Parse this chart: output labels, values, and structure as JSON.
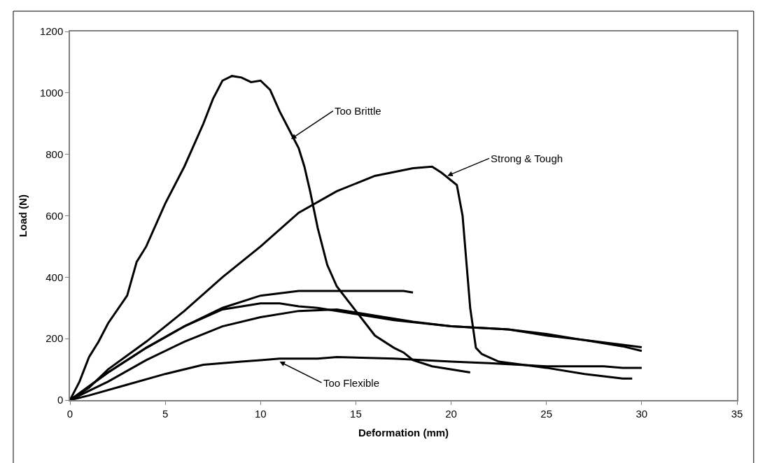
{
  "chart_data": {
    "type": "line",
    "xlabel": "Deformation (mm)",
    "ylabel": "Load (N)",
    "xlim": [
      0,
      35
    ],
    "xticks": [
      0,
      5,
      10,
      15,
      20,
      25,
      30,
      35
    ],
    "ylim": [
      0,
      1200
    ],
    "yticks": [
      0,
      200,
      400,
      600,
      800,
      1000,
      1200
    ],
    "marker": "none",
    "line_style": "solid",
    "series": [
      {
        "color": "#000000",
        "x": [
          0,
          0.5,
          1,
          1.5,
          2,
          3,
          3.5,
          4,
          5,
          6,
          7,
          7.5,
          8,
          8.5,
          9,
          9.5,
          10,
          10.5,
          11,
          11.5,
          12,
          12.3,
          12.6,
          13,
          13.5,
          14,
          15,
          16,
          17,
          17.5,
          18,
          19,
          21
        ],
        "values": [
          0,
          60,
          140,
          190,
          250,
          340,
          450,
          500,
          640,
          760,
          900,
          980,
          1040,
          1055,
          1050,
          1035,
          1040,
          1010,
          940,
          880,
          820,
          760,
          680,
          560,
          440,
          370,
          290,
          210,
          170,
          155,
          130,
          110,
          90
        ]
      },
      {
        "color": "#000000",
        "x": [
          0,
          1,
          2,
          4,
          6,
          8,
          10,
          12,
          14,
          16,
          18,
          19,
          19.5,
          20,
          20.3,
          20.6,
          20.8,
          21,
          21.3,
          21.6,
          22.5,
          25,
          27,
          29,
          29.5
        ],
        "values": [
          0,
          40,
          100,
          190,
          290,
          400,
          500,
          610,
          680,
          730,
          755,
          760,
          740,
          715,
          700,
          600,
          450,
          300,
          170,
          150,
          125,
          105,
          85,
          70,
          70
        ]
      },
      {
        "color": "#000000",
        "x": [
          0,
          2,
          4,
          6,
          8,
          10,
          12,
          17.5,
          18
        ],
        "values": [
          0,
          90,
          170,
          240,
          300,
          340,
          355,
          355,
          350
        ]
      },
      {
        "color": "#000000",
        "x": [
          0,
          2,
          4,
          6,
          8,
          10,
          11,
          12,
          13,
          15,
          17,
          20,
          23,
          25,
          27,
          29,
          30
        ],
        "values": [
          0,
          90,
          170,
          240,
          295,
          315,
          315,
          305,
          300,
          280,
          260,
          240,
          230,
          215,
          195,
          180,
          172
        ]
      },
      {
        "color": "#000000",
        "x": [
          0,
          2,
          4,
          6,
          8,
          10,
          12,
          14,
          16,
          18,
          20,
          23,
          25,
          27,
          29,
          30
        ],
        "values": [
          0,
          60,
          130,
          190,
          240,
          270,
          290,
          295,
          275,
          255,
          240,
          230,
          210,
          195,
          175,
          160
        ]
      },
      {
        "color": "#000000",
        "x": [
          0,
          1,
          3,
          5,
          7,
          9,
          10,
          11,
          13,
          14,
          17,
          20,
          22,
          25,
          28,
          29,
          30
        ],
        "values": [
          0,
          15,
          50,
          85,
          115,
          125,
          130,
          135,
          135,
          140,
          135,
          125,
          120,
          110,
          110,
          105,
          105
        ]
      }
    ],
    "annotations": [
      {
        "text": "Too Brittle",
        "x": 11.6,
        "y": 850
      },
      {
        "text": "Strong & Tough",
        "x": 19.8,
        "y": 730
      },
      {
        "text": "Too Flexible",
        "x": 11,
        "y": 125
      }
    ]
  }
}
